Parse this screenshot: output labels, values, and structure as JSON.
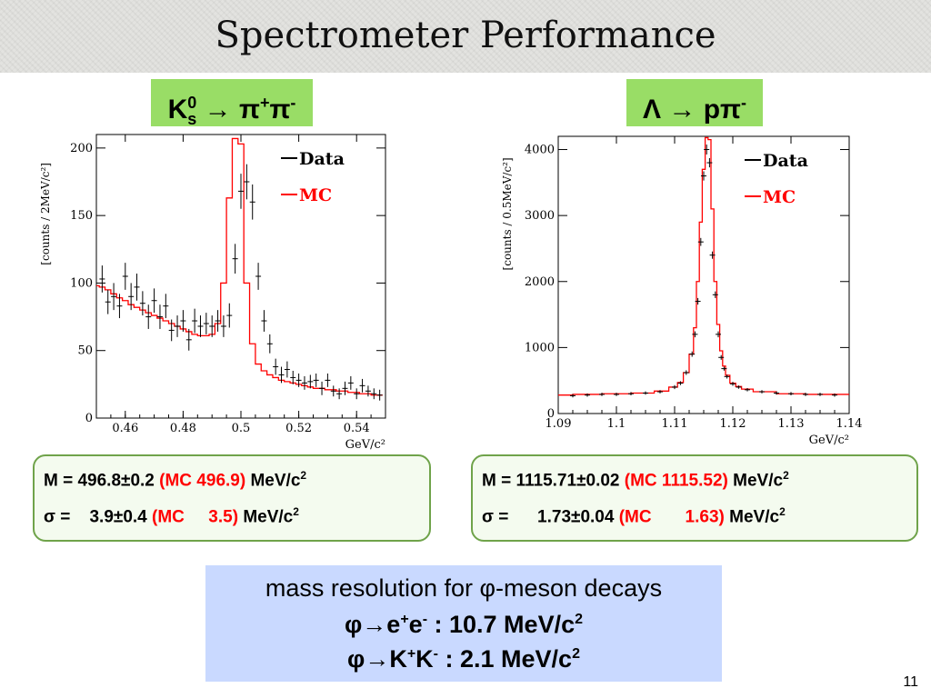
{
  "slide": {
    "title": "Spectrometer Performance",
    "page_number": "11"
  },
  "panels": [
    {
      "header": {
        "particle": "K",
        "sup0": "0",
        "subs": "s",
        "arrow": "→",
        "pi1": "π",
        "plus": "+",
        "pi2": "π",
        "minus": "-"
      },
      "result": {
        "m_label": "M = 496.8",
        "m_pm": "±0.2",
        "m_mc": "(MC 496.9)",
        "m_unit": "MeV/c",
        "m_pow": "2",
        "s_label": "σ =    3.9",
        "s_pm": "±0.4",
        "s_mc": "(MC     3.5)",
        "s_unit": "MeV/c",
        "s_pow": "2"
      }
    },
    {
      "header": {
        "lambda": "Λ",
        "arrow": "→",
        "p": "p",
        "pi": "π",
        "minus": "-"
      },
      "result": {
        "m_label": "M = 1115.71",
        "m_pm": "±0.02",
        "m_mc": "(MC 1115.52)",
        "m_unit": "MeV/c",
        "m_pow": "2",
        "s_label": "σ =      1.73",
        "s_pm": "±0.04",
        "s_mc": "(MC       1.63)",
        "s_unit": "MeV/c",
        "s_pow": "2"
      }
    }
  ],
  "summary": {
    "line1": "mass resolution for φ-meson decays",
    "line2_a": "φ→e",
    "line2_sup1": "+",
    "line2_b": "e",
    "line2_sup2": "-",
    "line2_c": " : 10.7 MeV/c",
    "line2_sup3": "2",
    "line3_a": "φ→K",
    "line3_sup1": "+",
    "line3_b": "K",
    "line3_sup2": "-",
    "line3_c": " : 2.1 MeV/c",
    "line3_sup3": "2"
  },
  "colors": {
    "data": "#000000",
    "mc": "#ff0000",
    "header_bg": "#99dd66",
    "summary_bg": "#c9d9ff",
    "box_border": "#6fa34a"
  },
  "chart_data": [
    {
      "type": "line",
      "ylabel": "[counts / 2MeV/c²]",
      "xlabel": "GeV/c²",
      "xlim": [
        0.45,
        0.55
      ],
      "ylim": [
        0,
        210
      ],
      "xticks": [
        0.46,
        0.48,
        0.5,
        0.52,
        0.54
      ],
      "xtick_labels": [
        "0.46",
        "0.48",
        "0.5",
        "0.52",
        "0.54"
      ],
      "yticks": [
        0,
        50,
        100,
        150,
        200
      ],
      "ytick_labels": [
        "0",
        "50",
        "100",
        "150",
        "200"
      ],
      "legend": [
        "Data",
        "MC"
      ],
      "legend_position": "top-right",
      "grid": false,
      "series": [
        {
          "name": "Data",
          "x": [
            0.452,
            0.454,
            0.456,
            0.458,
            0.46,
            0.462,
            0.464,
            0.466,
            0.468,
            0.47,
            0.472,
            0.474,
            0.476,
            0.478,
            0.48,
            0.482,
            0.484,
            0.486,
            0.488,
            0.49,
            0.492,
            0.494,
            0.496,
            0.498,
            0.5,
            0.502,
            0.504,
            0.506,
            0.508,
            0.51,
            0.512,
            0.514,
            0.516,
            0.518,
            0.52,
            0.522,
            0.524,
            0.526,
            0.528,
            0.53,
            0.532,
            0.534,
            0.536,
            0.538,
            0.54,
            0.542,
            0.544,
            0.546,
            0.548
          ],
          "y": [
            103,
            86,
            90,
            83,
            105,
            90,
            97,
            85,
            75,
            87,
            75,
            83,
            65,
            68,
            72,
            58,
            72,
            68,
            70,
            68,
            72,
            68,
            76,
            118,
            168,
            175,
            160,
            105,
            72,
            55,
            38,
            32,
            36,
            30,
            28,
            26,
            27,
            28,
            22,
            28,
            20,
            18,
            22,
            26,
            18,
            24,
            20,
            18,
            17
          ],
          "err": [
            10,
            9,
            10,
            9,
            10,
            10,
            10,
            9,
            9,
            9,
            9,
            9,
            8,
            8,
            8,
            8,
            9,
            8,
            8,
            8,
            8,
            8,
            9,
            11,
            13,
            13,
            13,
            10,
            8,
            7,
            6,
            6,
            6,
            5,
            5,
            5,
            5,
            5,
            5,
            5,
            4,
            4,
            5,
            5,
            4,
            5,
            4,
            4,
            4
          ]
        },
        {
          "name": "MC",
          "x": [
            0.45,
            0.452,
            0.454,
            0.456,
            0.458,
            0.46,
            0.462,
            0.464,
            0.466,
            0.468,
            0.47,
            0.472,
            0.474,
            0.476,
            0.478,
            0.48,
            0.482,
            0.484,
            0.486,
            0.488,
            0.49,
            0.492,
            0.494,
            0.496,
            0.498,
            0.5,
            0.502,
            0.504,
            0.506,
            0.508,
            0.51,
            0.512,
            0.514,
            0.516,
            0.518,
            0.52,
            0.522,
            0.524,
            0.526,
            0.528,
            0.53,
            0.532,
            0.534,
            0.536,
            0.538,
            0.54,
            0.542,
            0.544,
            0.546,
            0.548
          ],
          "y": [
            98,
            97,
            95,
            92,
            89,
            87,
            84,
            82,
            80,
            78,
            76,
            74,
            72,
            70,
            68,
            66,
            64,
            62,
            61,
            61,
            62,
            70,
            100,
            163,
            207,
            203,
            100,
            55,
            40,
            35,
            32,
            30,
            28,
            27,
            26,
            25,
            24,
            23,
            22,
            22,
            21,
            21,
            20,
            20,
            19,
            19,
            18,
            18,
            17,
            17
          ]
        }
      ]
    },
    {
      "type": "line",
      "ylabel": "[counts / 0.5MeV/c²]",
      "xlabel": "GeV/c²",
      "xlim": [
        1.09,
        1.14
      ],
      "ylim": [
        0,
        4200
      ],
      "xticks": [
        1.09,
        1.1,
        1.11,
        1.12,
        1.13,
        1.14
      ],
      "xtick_labels": [
        "1.09",
        "1.1",
        "1.11",
        "1.12",
        "1.13",
        "1.14"
      ],
      "yticks": [
        0,
        1000,
        2000,
        3000,
        4000
      ],
      "ytick_labels": [
        "0",
        "1000",
        "2000",
        "3000",
        "4000"
      ],
      "legend": [
        "Data",
        "MC"
      ],
      "legend_position": "top-right",
      "grid": false,
      "series": [
        {
          "name": "Data",
          "x": [
            1.0925,
            1.095,
            1.0975,
            1.1,
            1.1025,
            1.105,
            1.1075,
            1.11,
            1.111,
            1.112,
            1.113,
            1.1135,
            1.114,
            1.1145,
            1.115,
            1.1155,
            1.116,
            1.1165,
            1.117,
            1.1175,
            1.118,
            1.1185,
            1.119,
            1.12,
            1.121,
            1.1225,
            1.125,
            1.1275,
            1.13,
            1.1325,
            1.135,
            1.1375
          ],
          "y": [
            270,
            280,
            290,
            290,
            300,
            310,
            330,
            400,
            460,
            620,
            900,
            1200,
            1700,
            2600,
            3600,
            4000,
            3800,
            2400,
            1800,
            1200,
            850,
            680,
            560,
            450,
            400,
            360,
            330,
            310,
            300,
            290,
            290,
            280
          ],
          "err": [
            25,
            25,
            25,
            25,
            25,
            25,
            25,
            30,
            30,
            35,
            40,
            45,
            50,
            60,
            70,
            75,
            70,
            55,
            50,
            45,
            35,
            30,
            30,
            30,
            25,
            25,
            25,
            25,
            25,
            25,
            25,
            25
          ]
        },
        {
          "name": "MC",
          "x": [
            1.09,
            1.095,
            1.1,
            1.105,
            1.108,
            1.11,
            1.111,
            1.112,
            1.113,
            1.1135,
            1.114,
            1.1145,
            1.115,
            1.1155,
            1.116,
            1.1165,
            1.117,
            1.1175,
            1.118,
            1.1185,
            1.119,
            1.12,
            1.121,
            1.122,
            1.125,
            1.13,
            1.135,
            1.14
          ],
          "y": [
            280,
            290,
            300,
            310,
            340,
            400,
            470,
            620,
            900,
            1300,
            2000,
            2900,
            3700,
            4180,
            4150,
            3100,
            2000,
            1350,
            950,
            720,
            580,
            460,
            410,
            370,
            330,
            300,
            290,
            290
          ]
        }
      ]
    }
  ]
}
